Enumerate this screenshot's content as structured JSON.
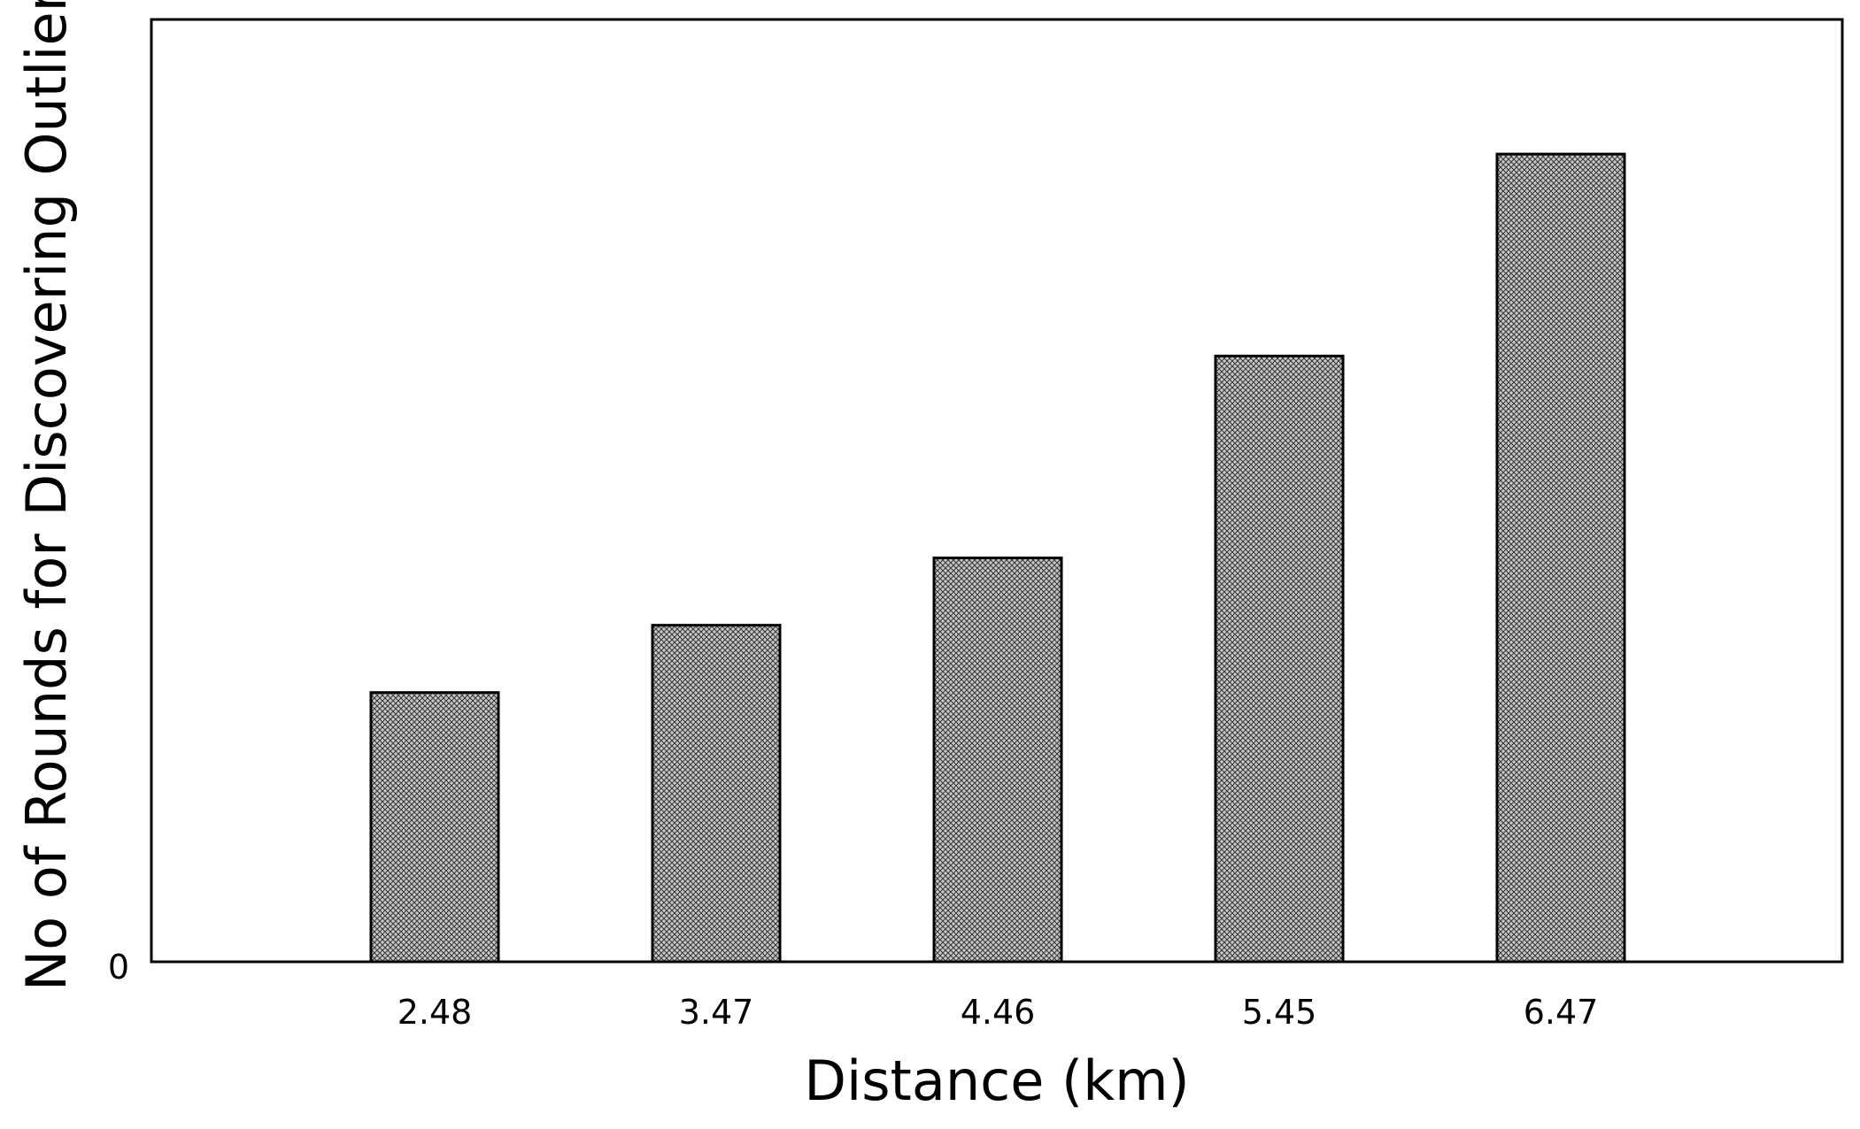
{
  "chart_data": {
    "type": "bar",
    "title": "",
    "xlabel": "Distance (km)",
    "ylabel": "No of Rounds for Discovering Outlier",
    "categories": [
      "2.48",
      "3.47",
      "4.46",
      "5.45",
      "6.47"
    ],
    "values": [
      2.0,
      2.5,
      3.0,
      4.5,
      6.0
    ],
    "ylim": [
      0,
      7
    ],
    "y_tick_labels": [
      "0"
    ],
    "grid": false,
    "legend": "none",
    "bar_pattern": "crosshatch",
    "colors": {
      "bar_fill": "#c8c8c8",
      "bar_hatch": "#3a3a3a",
      "bar_edge": "#000000",
      "axis": "#000000",
      "background": "#ffffff"
    }
  }
}
